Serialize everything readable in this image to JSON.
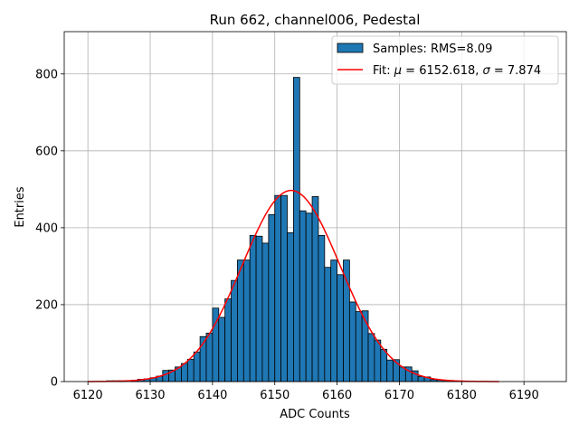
{
  "chart_data": {
    "type": "bar",
    "title": "Run 662, channel006, Pedestal",
    "xlabel": "ADC Counts",
    "ylabel": "Entries",
    "xlim": [
      6116.2,
      6196.8
    ],
    "ylim": [
      0,
      910
    ],
    "xticks": [
      6120,
      6130,
      6140,
      6150,
      6160,
      6170,
      6180,
      6190
    ],
    "yticks": [
      0,
      200,
      400,
      600,
      800
    ],
    "grid": true,
    "legend_position": "upper-right",
    "legend": [
      {
        "label": "Samples: RMS=8.09",
        "kind": "patch"
      },
      {
        "label_prefix": "Fit: ",
        "mu_symbol": "μ",
        "mu_text": " = 6152.618, ",
        "sigma_symbol": "σ",
        "sigma_text": " = 7.874",
        "kind": "line"
      }
    ],
    "histogram": {
      "name": "Samples: RMS=8.09",
      "bin_edges_start": 6120,
      "bin_width": 1,
      "bar_color": "#1f77b4",
      "edge_color": "#000000",
      "values": [
        0,
        0,
        0,
        2,
        2,
        2,
        0,
        3,
        6,
        7,
        10,
        14,
        29,
        30,
        38,
        47,
        58,
        77,
        117,
        126,
        191,
        167,
        215,
        263,
        316,
        316,
        380,
        378,
        360,
        434,
        484,
        484,
        387,
        791,
        444,
        438,
        481,
        380,
        297,
        316,
        278,
        316,
        207,
        182,
        184,
        125,
        108,
        84,
        56,
        57,
        38,
        38,
        28,
        13,
        12,
        5,
        4,
        3,
        2,
        1,
        0,
        0,
        0,
        0,
        0,
        0
      ]
    },
    "fit": {
      "name": "Fit",
      "mu": 6152.618,
      "sigma": 7.874,
      "amplitude": 497,
      "x_range": [
        6120,
        6186
      ],
      "color": "#ff0000"
    }
  }
}
